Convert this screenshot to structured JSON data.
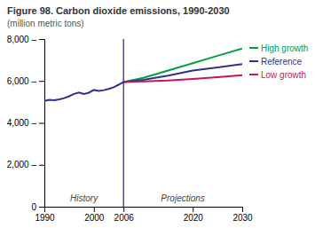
{
  "chart_data": {
    "type": "line",
    "title": "Figure 98. Carbon dioxide emissions, 1990-2030",
    "subtitle": "(million metric tons)",
    "series": [
      {
        "x": [
          1990,
          1991,
          1992,
          1993,
          1994,
          1995,
          1996,
          1997,
          1998,
          1999,
          2000,
          2001,
          2002,
          2003,
          2004,
          2005,
          2006
        ],
        "values": [
          5050,
          5100,
          5080,
          5120,
          5180,
          5270,
          5380,
          5450,
          5380,
          5440,
          5570,
          5520,
          5560,
          5620,
          5700,
          5820,
          5950
        ],
        "color": "#2e3192"
      },
      {
        "name": "High growth",
        "x": [
          2006,
          2010,
          2015,
          2020,
          2025,
          2030
        ],
        "values": [
          5950,
          6150,
          6500,
          6850,
          7200,
          7550
        ],
        "color": "#00a040"
      },
      {
        "name": "Reference",
        "x": [
          2006,
          2010,
          2015,
          2020,
          2025,
          2030
        ],
        "values": [
          5950,
          6050,
          6250,
          6500,
          6650,
          6800
        ],
        "color": "#2e3192"
      },
      {
        "name": "Low growth",
        "x": [
          2006,
          2010,
          2015,
          2020,
          2025,
          2030
        ],
        "values": [
          5950,
          5980,
          6020,
          6100,
          6180,
          6280
        ],
        "color": "#c2185b"
      }
    ],
    "vline": 2006,
    "vline_color": "#2e3192",
    "annotations": [
      "History",
      "Projections"
    ],
    "xlim": [
      1990,
      2030
    ],
    "xticks": [
      1990,
      2000,
      2006,
      2020,
      2030
    ],
    "ylim": [
      0,
      8000
    ],
    "yticks": [
      0,
      {
        "value": 2000,
        "label": "2,000 –"
      },
      {
        "value": 4000,
        "label": "4,000 –"
      },
      {
        "value": 6000,
        "label": "6,000 –"
      },
      {
        "value": 8000,
        "label": "8,000 –"
      }
    ],
    "grid": false,
    "legend": "right"
  }
}
